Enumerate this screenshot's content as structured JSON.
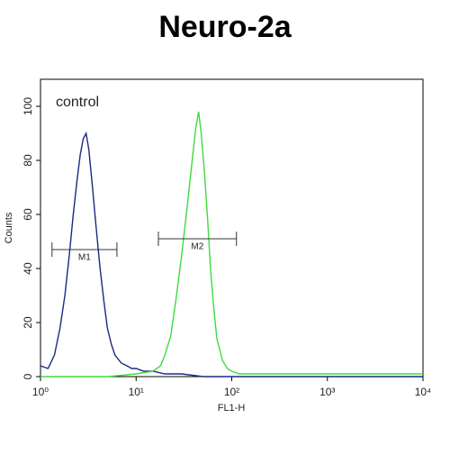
{
  "chart_data": {
    "type": "line",
    "title": "Neuro-2a",
    "annotation": "control",
    "x_label": "FL1-H",
    "y_label": "Counts",
    "x_scale": "log",
    "xlim": [
      1,
      10000
    ],
    "xticks": [
      {
        "value": 1,
        "label": "10⁰"
      },
      {
        "value": 10,
        "label": "10¹"
      },
      {
        "value": 100,
        "label": "10²"
      },
      {
        "value": 1000,
        "label": "10³"
      },
      {
        "value": 10000,
        "label": "10⁴"
      }
    ],
    "ylim": [
      0,
      110
    ],
    "yticks": [
      0,
      20,
      40,
      60,
      80,
      100
    ],
    "series": [
      {
        "color": "#1c2a80",
        "x": [
          1,
          1.2,
          1.4,
          1.6,
          1.8,
          2.0,
          2.2,
          2.4,
          2.6,
          2.8,
          3.0,
          3.2,
          3.5,
          3.8,
          4.2,
          4.6,
          5,
          5.5,
          6,
          7,
          8,
          9,
          10,
          12,
          15,
          20,
          30,
          50,
          100,
          1000,
          10000
        ],
        "values": [
          4,
          3,
          8,
          18,
          30,
          45,
          60,
          72,
          82,
          88,
          90,
          84,
          70,
          56,
          40,
          28,
          18,
          12,
          8,
          5,
          4,
          3,
          3,
          2,
          2,
          1,
          1,
          0,
          0,
          0,
          0
        ]
      },
      {
        "color": "#3ddc3d",
        "x": [
          1,
          5,
          10,
          15,
          18,
          20,
          23,
          26,
          30,
          34,
          38,
          42,
          45,
          48,
          52,
          56,
          60,
          65,
          70,
          80,
          90,
          100,
          120,
          150,
          300,
          1000,
          10000
        ],
        "values": [
          0,
          0,
          1,
          2,
          4,
          8,
          15,
          28,
          45,
          62,
          78,
          92,
          98,
          90,
          75,
          58,
          40,
          25,
          14,
          6,
          3,
          2,
          1,
          1,
          1,
          1,
          1
        ]
      }
    ],
    "markers": [
      {
        "label": "M1",
        "x": [
          1.32,
          6.3
        ],
        "y": 47
      },
      {
        "label": "M2",
        "x": [
          17.1,
          112
        ],
        "y": 51
      }
    ]
  }
}
